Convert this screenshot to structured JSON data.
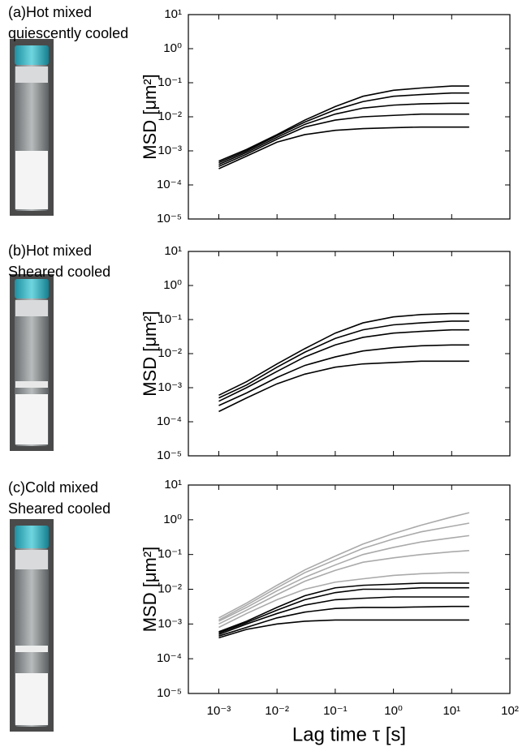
{
  "chart_data": [
    {
      "type": "line",
      "annotations": [
        "(a)Hot mixed",
        "quiescently cooled"
      ],
      "y_label": "MSD [μm²]",
      "log_x": true,
      "log_y": true,
      "xlim": [
        0.0003,
        100
      ],
      "ylim": [
        1e-05,
        10
      ],
      "xticks": [
        0.001,
        0.01,
        0.1,
        1,
        10,
        100
      ],
      "show_xtick_labels": false,
      "yticks": [
        {
          "value": 1e-05,
          "label": "10⁻⁵"
        },
        {
          "value": 0.0001,
          "label": "10⁻⁴"
        },
        {
          "value": 0.001,
          "label": "10⁻³"
        },
        {
          "value": 0.01,
          "label": "10⁻²"
        },
        {
          "value": 0.1,
          "label": "10⁻¹"
        },
        {
          "value": 1,
          "label": "10⁰"
        },
        {
          "value": 10,
          "label": "10¹"
        }
      ],
      "x": [
        0.001,
        0.003,
        0.01,
        0.03,
        0.1,
        0.3,
        1,
        3,
        10,
        20
      ],
      "series": [
        {
          "color": "#000000",
          "values": [
            0.0003,
            0.0007,
            0.0018,
            0.003,
            0.004,
            0.0045,
            0.0048,
            0.005,
            0.005,
            0.005
          ]
        },
        {
          "color": "#000000",
          "values": [
            0.00035,
            0.0008,
            0.0022,
            0.005,
            0.008,
            0.01,
            0.011,
            0.012,
            0.012,
            0.012
          ]
        },
        {
          "color": "#000000",
          "values": [
            0.0004,
            0.0009,
            0.0025,
            0.006,
            0.012,
            0.018,
            0.022,
            0.024,
            0.025,
            0.025
          ]
        },
        {
          "color": "#000000",
          "values": [
            0.00045,
            0.001,
            0.0028,
            0.007,
            0.016,
            0.028,
            0.04,
            0.045,
            0.05,
            0.05
          ]
        },
        {
          "color": "#000000",
          "values": [
            0.0005,
            0.0011,
            0.003,
            0.008,
            0.02,
            0.04,
            0.06,
            0.07,
            0.08,
            0.08
          ]
        }
      ]
    },
    {
      "type": "line",
      "annotations": [
        "(b)Hot mixed",
        "Sheared cooled"
      ],
      "y_label": "MSD [μm²]",
      "log_x": true,
      "log_y": true,
      "xlim": [
        0.0003,
        100
      ],
      "ylim": [
        1e-05,
        10
      ],
      "xticks": [
        0.001,
        0.01,
        0.1,
        1,
        10,
        100
      ],
      "show_xtick_labels": false,
      "yticks": [
        {
          "value": 1e-05,
          "label": "10⁻⁵"
        },
        {
          "value": 0.0001,
          "label": "10⁻⁴"
        },
        {
          "value": 0.001,
          "label": "10⁻³"
        },
        {
          "value": 0.01,
          "label": "10⁻²"
        },
        {
          "value": 0.1,
          "label": "10⁻¹"
        },
        {
          "value": 1,
          "label": "10⁰"
        },
        {
          "value": 10,
          "label": "10¹"
        }
      ],
      "x": [
        0.001,
        0.003,
        0.01,
        0.03,
        0.1,
        0.3,
        1,
        3,
        10,
        20
      ],
      "series": [
        {
          "color": "#000000",
          "values": [
            0.0002,
            0.0005,
            0.0013,
            0.0025,
            0.004,
            0.005,
            0.0055,
            0.006,
            0.006,
            0.006
          ]
        },
        {
          "color": "#000000",
          "values": [
            0.0003,
            0.0007,
            0.002,
            0.0045,
            0.008,
            0.012,
            0.015,
            0.017,
            0.018,
            0.018
          ]
        },
        {
          "color": "#000000",
          "values": [
            0.0004,
            0.001,
            0.003,
            0.008,
            0.018,
            0.03,
            0.04,
            0.045,
            0.05,
            0.05
          ]
        },
        {
          "color": "#000000",
          "values": [
            0.0005,
            0.0012,
            0.004,
            0.011,
            0.028,
            0.05,
            0.07,
            0.08,
            0.09,
            0.09
          ]
        },
        {
          "color": "#000000",
          "values": [
            0.0006,
            0.0015,
            0.005,
            0.014,
            0.04,
            0.08,
            0.12,
            0.14,
            0.15,
            0.15
          ]
        }
      ]
    },
    {
      "type": "line",
      "annotations": [
        "(c)Cold mixed",
        "Sheared cooled"
      ],
      "y_label": "MSD [μm²]",
      "x_label": "Lag time τ [s]",
      "log_x": true,
      "log_y": true,
      "xlim": [
        0.0003,
        100
      ],
      "ylim": [
        1e-05,
        10
      ],
      "xticks": [
        {
          "value": 0.001,
          "label": "10⁻³"
        },
        {
          "value": 0.01,
          "label": "10⁻²"
        },
        {
          "value": 0.1,
          "label": "10⁻¹"
        },
        {
          "value": 1,
          "label": "10⁰"
        },
        {
          "value": 10,
          "label": "10¹"
        },
        {
          "value": 100,
          "label": "10²"
        }
      ],
      "show_xtick_labels": true,
      "yticks": [
        {
          "value": 1e-05,
          "label": "10⁻⁵"
        },
        {
          "value": 0.0001,
          "label": "10⁻⁴"
        },
        {
          "value": 0.001,
          "label": "10⁻³"
        },
        {
          "value": 0.01,
          "label": "10⁻²"
        },
        {
          "value": 0.1,
          "label": "10⁻¹"
        },
        {
          "value": 1,
          "label": "10⁰"
        },
        {
          "value": 10,
          "label": "10¹"
        }
      ],
      "x": [
        0.001,
        0.003,
        0.01,
        0.03,
        0.1,
        0.3,
        1,
        3,
        10,
        20
      ],
      "series": [
        {
          "color": "#aaaaaa",
          "values": [
            0.0008,
            0.002,
            0.005,
            0.01,
            0.016,
            0.02,
            0.025,
            0.028,
            0.03,
            0.03
          ]
        },
        {
          "color": "#aaaaaa",
          "values": [
            0.001,
            0.0025,
            0.007,
            0.017,
            0.035,
            0.06,
            0.08,
            0.1,
            0.12,
            0.13
          ]
        },
        {
          "color": "#aaaaaa",
          "values": [
            0.0012,
            0.003,
            0.009,
            0.022,
            0.05,
            0.1,
            0.16,
            0.23,
            0.3,
            0.35
          ]
        },
        {
          "color": "#aaaaaa",
          "values": [
            0.0013,
            0.0035,
            0.011,
            0.03,
            0.07,
            0.15,
            0.28,
            0.45,
            0.65,
            0.8
          ]
        },
        {
          "color": "#aaaaaa",
          "values": [
            0.0015,
            0.004,
            0.013,
            0.036,
            0.09,
            0.2,
            0.4,
            0.7,
            1.2,
            1.6
          ]
        },
        {
          "color": "#000000",
          "values": [
            0.0004,
            0.0007,
            0.001,
            0.0012,
            0.0013,
            0.0013,
            0.0013,
            0.0013,
            0.0013,
            0.0013
          ]
        },
        {
          "color": "#000000",
          "values": [
            0.00045,
            0.0008,
            0.0015,
            0.0022,
            0.0028,
            0.003,
            0.003,
            0.0031,
            0.0032,
            0.0032
          ]
        },
        {
          "color": "#000000",
          "values": [
            0.0005,
            0.001,
            0.002,
            0.0035,
            0.005,
            0.0055,
            0.006,
            0.006,
            0.006,
            0.006
          ]
        },
        {
          "color": "#000000",
          "values": [
            0.00055,
            0.0011,
            0.0025,
            0.005,
            0.008,
            0.01,
            0.01,
            0.011,
            0.011,
            0.011
          ]
        },
        {
          "color": "#000000",
          "values": [
            0.0006,
            0.0012,
            0.003,
            0.0065,
            0.011,
            0.013,
            0.014,
            0.015,
            0.015,
            0.015
          ]
        }
      ]
    }
  ]
}
